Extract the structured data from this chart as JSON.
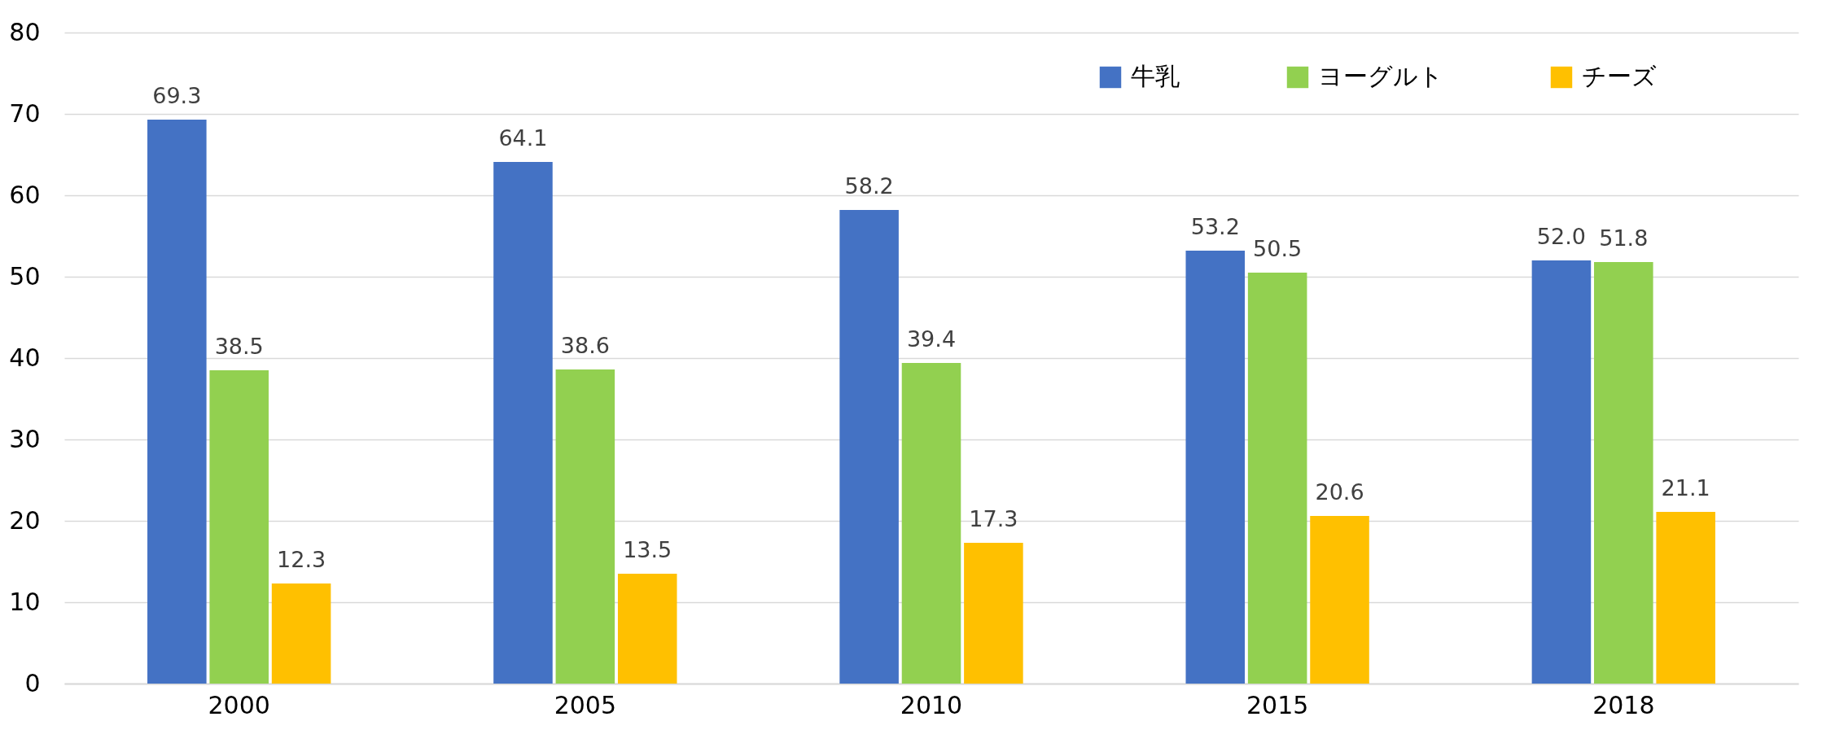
{
  "chart_data": {
    "type": "bar",
    "categories": [
      "2000",
      "2005",
      "2010",
      "2015",
      "2018"
    ],
    "series": [
      {
        "name": "牛乳",
        "color": "#4472c4",
        "values": [
          69.3,
          64.1,
          58.2,
          53.2,
          52.0
        ],
        "value_labels": [
          "69.3",
          "64.1",
          "58.2",
          "53.2",
          "52.0"
        ]
      },
      {
        "name": "ヨーグルト",
        "color": "#92d050",
        "values": [
          38.5,
          38.6,
          39.4,
          50.5,
          51.8
        ],
        "value_labels": [
          "38.5",
          "38.6",
          "39.4",
          "50.5",
          "51.8"
        ]
      },
      {
        "name": "チーズ",
        "color": "#ffc000",
        "values": [
          12.3,
          13.5,
          17.3,
          20.6,
          21.1
        ],
        "value_labels": [
          "12.3",
          "13.5",
          "17.3",
          "20.6",
          "21.1"
        ]
      }
    ],
    "ylim": [
      0,
      80
    ],
    "yticks": [
      0,
      10,
      20,
      30,
      40,
      50,
      60,
      70,
      80
    ],
    "grid": "y",
    "legend": "top right"
  }
}
